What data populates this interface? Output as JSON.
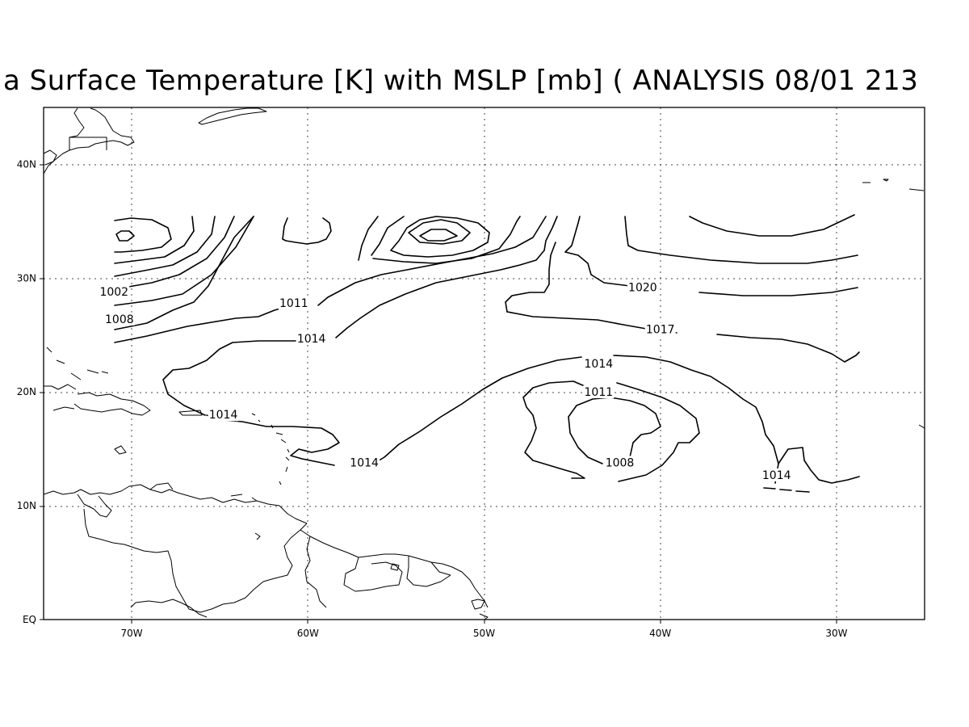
{
  "title": "a Surface Temperature [K] with MSLP [mb] ( ANALYSIS 08/01 213",
  "map": {
    "lon_range": [
      -75,
      -25
    ],
    "lat_range": [
      0,
      45
    ],
    "grid": "dotted",
    "x_ticks": [
      {
        "lon": -70,
        "label": "70W"
      },
      {
        "lon": -60,
        "label": "60W"
      },
      {
        "lon": -50,
        "label": "50W"
      },
      {
        "lon": -40,
        "label": "40W"
      },
      {
        "lon": -30,
        "label": "30W"
      }
    ],
    "y_ticks": [
      {
        "lat": 0,
        "label": "EQ"
      },
      {
        "lat": 10,
        "label": "10N"
      },
      {
        "lat": 20,
        "label": "20N"
      },
      {
        "lat": 30,
        "label": "30N"
      },
      {
        "lat": 40,
        "label": "40N"
      }
    ]
  },
  "contour_labels": [
    {
      "value": "1002",
      "lon": -71.0,
      "lat": 28.6
    },
    {
      "value": "1008",
      "lon": -70.7,
      "lat": 26.2
    },
    {
      "value": "1011",
      "lon": -60.8,
      "lat": 27.6
    },
    {
      "value": "1014",
      "lon": -59.8,
      "lat": 24.5
    },
    {
      "value": "1020",
      "lon": -41.0,
      "lat": 29.0
    },
    {
      "value": "1017",
      "lon": -40.0,
      "lat": 25.3
    },
    {
      "value": "1014",
      "lon": -43.5,
      "lat": 22.3
    },
    {
      "value": "1011",
      "lon": -43.5,
      "lat": 19.8
    },
    {
      "value": "1014",
      "lon": -64.8,
      "lat": 17.8
    },
    {
      "value": "1014",
      "lon": -56.8,
      "lat": 13.6
    },
    {
      "value": "1008",
      "lon": -42.3,
      "lat": 13.6
    },
    {
      "value": "1014",
      "lon": -33.4,
      "lat": 12.5
    }
  ]
}
